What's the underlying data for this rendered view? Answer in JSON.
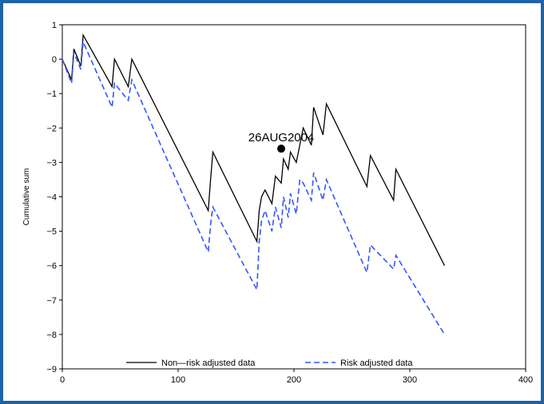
{
  "chart_data": {
    "type": "line",
    "title": "",
    "xlabel": "",
    "ylabel": "Cumulative sum",
    "xlim": [
      0,
      400
    ],
    "ylim": [
      -9,
      1
    ],
    "x_ticks": [
      0,
      100,
      200,
      300,
      400
    ],
    "y_ticks": [
      1,
      0,
      -1,
      -2,
      -3,
      -4,
      -5,
      -6,
      -7,
      -8,
      -9
    ],
    "grid": false,
    "legend_position": "bottom-inside",
    "series": [
      {
        "name": "Non—risk adjusted data",
        "color": "#000000",
        "style": "solid",
        "points": [
          [
            0,
            0
          ],
          [
            8,
            -0.6
          ],
          [
            10,
            0.3
          ],
          [
            16,
            -0.2
          ],
          [
            18,
            0.7
          ],
          [
            43,
            -0.8
          ],
          [
            45,
            0
          ],
          [
            57,
            -0.8
          ],
          [
            60,
            0
          ],
          [
            126,
            -4.4
          ],
          [
            128,
            -3.5
          ],
          [
            130,
            -2.7
          ],
          [
            168,
            -5.3
          ],
          [
            170,
            -4.4
          ],
          [
            172,
            -4.0
          ],
          [
            175,
            -3.8
          ],
          [
            181,
            -4.2
          ],
          [
            184,
            -3.4
          ],
          [
            189,
            -3.6
          ],
          [
            191,
            -2.9
          ],
          [
            195,
            -3.2
          ],
          [
            197,
            -2.7
          ],
          [
            202,
            -3.0
          ],
          [
            205,
            -2.5
          ],
          [
            208,
            -2.0
          ],
          [
            215,
            -2.5
          ],
          [
            217,
            -1.4
          ],
          [
            225,
            -2.2
          ],
          [
            228,
            -1.3
          ],
          [
            263,
            -3.7
          ],
          [
            266,
            -2.8
          ],
          [
            286,
            -4.1
          ],
          [
            288,
            -3.2
          ],
          [
            330,
            -6.0
          ]
        ]
      },
      {
        "name": "Risk adjusted data",
        "color": "#3355ff",
        "style": "dashed",
        "points": [
          [
            0,
            0
          ],
          [
            8,
            -0.7
          ],
          [
            10,
            0.2
          ],
          [
            16,
            -0.3
          ],
          [
            18,
            0.5
          ],
          [
            43,
            -1.4
          ],
          [
            45,
            -0.7
          ],
          [
            57,
            -1.2
          ],
          [
            60,
            -0.6
          ],
          [
            126,
            -5.6
          ],
          [
            128,
            -4.8
          ],
          [
            130,
            -4.3
          ],
          [
            168,
            -6.7
          ],
          [
            170,
            -5.3
          ],
          [
            172,
            -4.7
          ],
          [
            175,
            -4.4
          ],
          [
            181,
            -5.0
          ],
          [
            184,
            -4.3
          ],
          [
            189,
            -4.9
          ],
          [
            191,
            -4.0
          ],
          [
            195,
            -4.6
          ],
          [
            197,
            -3.9
          ],
          [
            202,
            -4.5
          ],
          [
            205,
            -3.5
          ],
          [
            208,
            -3.6
          ],
          [
            215,
            -4.1
          ],
          [
            217,
            -3.3
          ],
          [
            225,
            -4.1
          ],
          [
            228,
            -3.5
          ],
          [
            263,
            -6.2
          ],
          [
            266,
            -5.4
          ],
          [
            286,
            -6.1
          ],
          [
            288,
            -5.7
          ],
          [
            330,
            -8.0
          ]
        ]
      }
    ],
    "annotation": {
      "label": "26AUG2004",
      "x": 189,
      "y": -2.6
    }
  }
}
